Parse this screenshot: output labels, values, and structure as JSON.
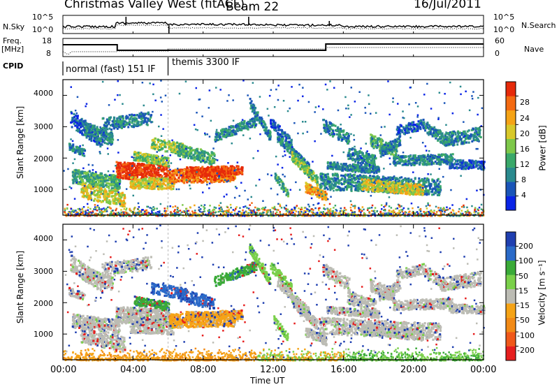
{
  "header": {
    "title": "Christmas Valley West (fitACF)",
    "beam": "Beam 22",
    "date": "16/Jul/2011"
  },
  "top_panel": {
    "left_label": "N.Sky",
    "right_label": "N.Search",
    "left_ticks": [
      "10^5",
      "10^0"
    ],
    "right_ticks": [
      "10^5",
      "10^0"
    ]
  },
  "freq_panel": {
    "left_label_line1": "Freq.",
    "left_label_line2": "[MHz]",
    "right_label": "Nave",
    "left_ticks": [
      "18",
      "8"
    ],
    "right_ticks": [
      "60",
      "0"
    ]
  },
  "cpid": {
    "label": "CPID",
    "segments": [
      {
        "name": "normal (fast) 151 IF",
        "start_hour": 0,
        "end_hour": 6
      },
      {
        "name": "themis 3300 IF",
        "start_hour": 6,
        "end_hour": 24
      }
    ]
  },
  "chart_data": [
    {
      "type": "heatmap",
      "ylabel": "Slant Range [km]",
      "xlabel": "Time UT",
      "xlim": [
        0,
        24
      ],
      "ylim": [
        180,
        4500
      ],
      "xticks": [
        "00:00",
        "04:00",
        "08:00",
        "12:00",
        "16:00",
        "20:00",
        "00:00"
      ],
      "yticks": [
        1000,
        2000,
        3000,
        4000
      ],
      "colorbar": {
        "label": "Power [dB]",
        "ticks": [
          "4",
          "8",
          "12",
          "16",
          "20",
          "24",
          "28"
        ],
        "colors": [
          "#0a24e6",
          "#1a55b8",
          "#2a8a8e",
          "#3aa86a",
          "#7ec84a",
          "#d8c82a",
          "#f5a316",
          "#f46a12",
          "#e62a0a"
        ]
      }
    },
    {
      "type": "heatmap",
      "ylabel": "Slant Range [km]",
      "xlabel": "Time UT",
      "xlim": [
        0,
        24
      ],
      "ylim": [
        180,
        4500
      ],
      "xticks": [
        "00:00",
        "04:00",
        "08:00",
        "12:00",
        "16:00",
        "20:00",
        "00:00"
      ],
      "yticks": [
        1000,
        2000,
        3000,
        4000
      ],
      "colorbar": {
        "label": "Velocity [m s⁻¹]",
        "ticks": [
          "200",
          "100",
          "50",
          "15",
          "-15",
          "-50",
          "-100",
          "-200"
        ],
        "colors": [
          "#1f3fb0",
          "#2a6ac8",
          "#3aaa38",
          "#7ad04a",
          "#bcbcb4",
          "#f5a316",
          "#f28a16",
          "#f0581a",
          "#e61e1e"
        ]
      }
    }
  ]
}
